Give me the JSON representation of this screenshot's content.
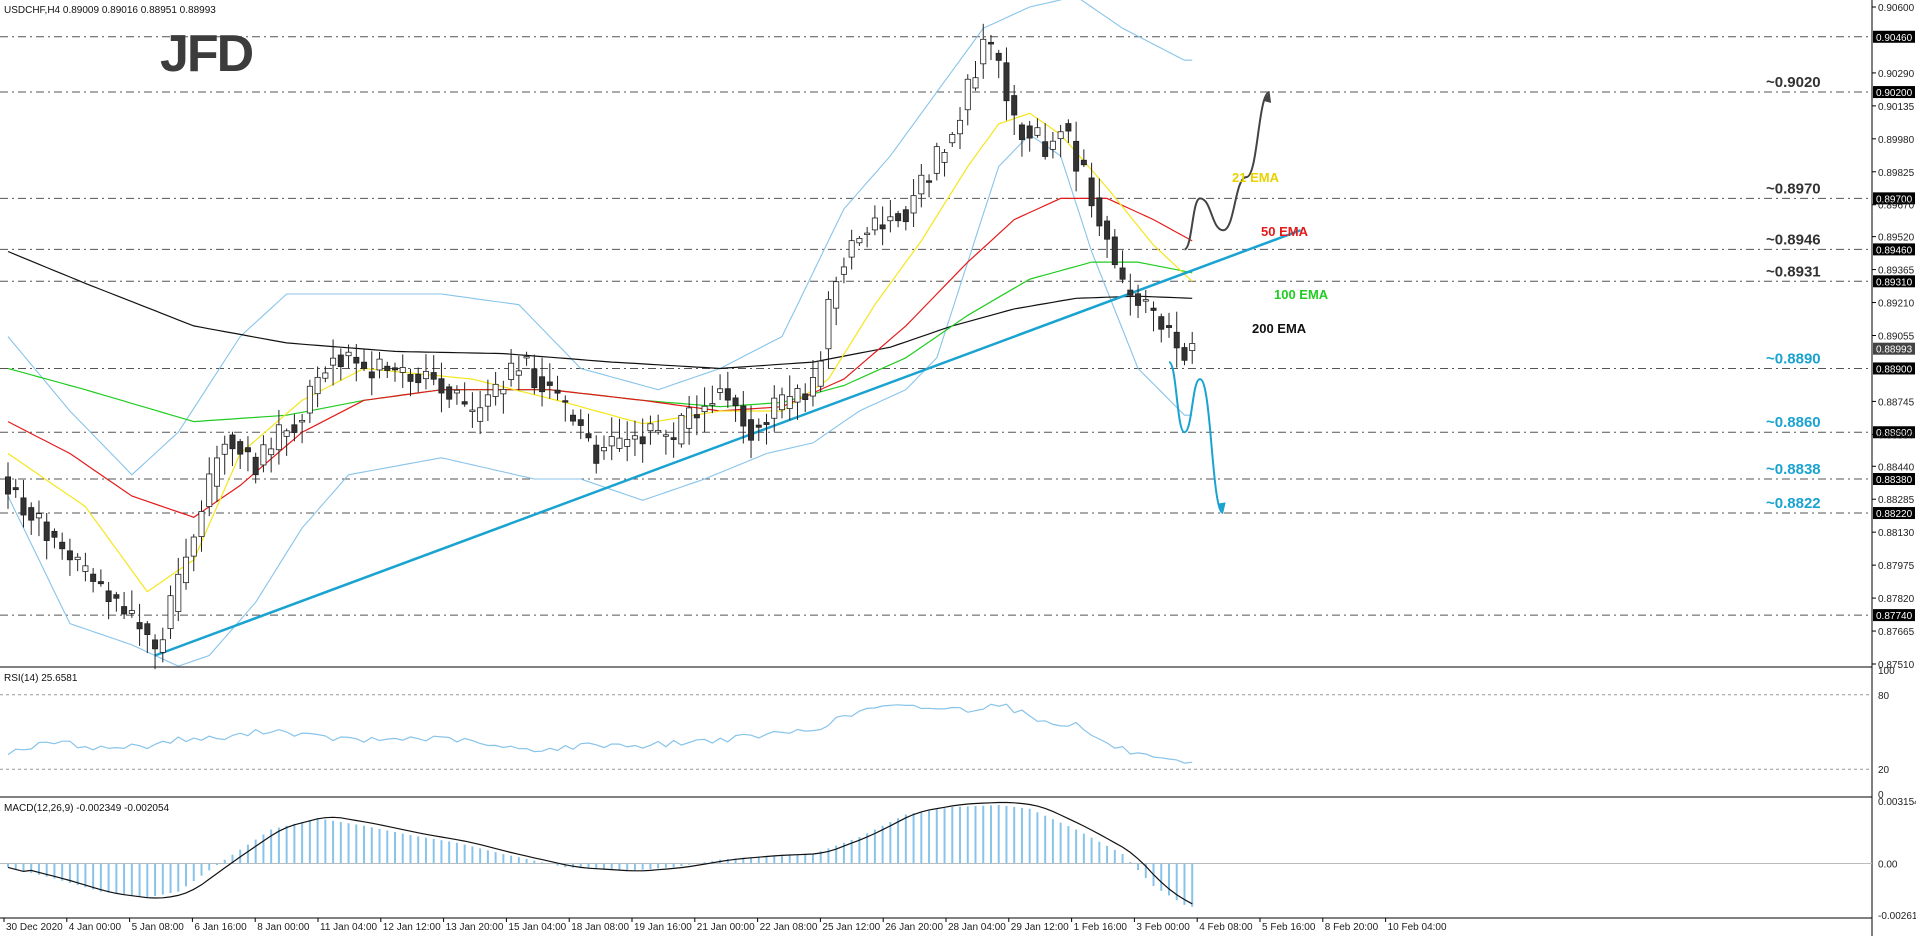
{
  "chart_data": {
    "type": "candlestick",
    "symbol_header": "USDCHF,H4  0.89009 0.89016 0.88951 0.88993",
    "logo": "JFD",
    "colors": {
      "bull": "#ffffff",
      "bear": "#333333",
      "trend": "#1aa3d0",
      "bands": "#88c4ea",
      "ema21": "#f5e61c",
      "ema50": "#e41a1a",
      "ema100": "#22cc22",
      "ema200": "#111111",
      "grid": "#555555",
      "level_text": "#1aa3d0"
    },
    "price_axis": {
      "ylim": [
        0.8751,
        0.906
      ],
      "ticks": [
        "0.90600",
        "0.90290",
        "0.90135",
        "0.89980",
        "0.89825",
        "0.89670",
        "0.89520",
        "0.89365",
        "0.89210",
        "0.89055",
        "0.88745",
        "0.88590",
        "0.88440",
        "0.88285",
        "0.88130",
        "0.87975",
        "0.87820",
        "0.87665",
        "0.87510"
      ],
      "current_price": "0.88993"
    },
    "x_axis": {
      "labels": [
        "30 Dec 2020",
        "4 Jan 00:00",
        "5 Jan 08:00",
        "6 Jan 16:00",
        "8 Jan 00:00",
        "11 Jan 04:00",
        "12 Jan 12:00",
        "13 Jan 20:00",
        "15 Jan 04:00",
        "18 Jan 08:00",
        "19 Jan 16:00",
        "21 Jan 00:00",
        "22 Jan 08:00",
        "25 Jan 12:00",
        "26 Jan 20:00",
        "28 Jan 04:00",
        "29 Jan 12:00",
        "1 Feb 16:00",
        "3 Feb 00:00",
        "4 Feb 08:00",
        "5 Feb 16:00",
        "8 Feb 20:00",
        "10 Feb 04:00"
      ]
    },
    "levels": [
      {
        "price": 0.9046,
        "axis_label": "0.90460",
        "annotation": ""
      },
      {
        "price": 0.902,
        "axis_label": "0.90200",
        "annotation": "~0.9020"
      },
      {
        "price": 0.897,
        "axis_label": "0.89700",
        "annotation": "~0.8970"
      },
      {
        "price": 0.8946,
        "axis_label": "0.89460",
        "annotation": "~0.8946"
      },
      {
        "price": 0.8931,
        "axis_label": "0.89310",
        "annotation": "~0.8931"
      },
      {
        "price": 0.889,
        "axis_label": "0.88900",
        "annotation": "~0.8890"
      },
      {
        "price": 0.886,
        "axis_label": "0.88600",
        "annotation": "~0.8860"
      },
      {
        "price": 0.8838,
        "axis_label": "0.88380",
        "annotation": "~0.8838"
      },
      {
        "price": 0.8822,
        "axis_label": "0.88220",
        "annotation": "~0.8822"
      },
      {
        "price": 0.8774,
        "axis_label": "0.87740",
        "annotation": ""
      }
    ],
    "ema_labels": [
      "21 EMA",
      "50 EMA",
      "100 EMA",
      "200 EMA"
    ],
    "anchors": {
      "closes": [
        [
          0,
          0.8833
        ],
        [
          8,
          0.88
        ],
        [
          17,
          0.8768
        ],
        [
          19,
          0.8755
        ],
        [
          23,
          0.88
        ],
        [
          28,
          0.886
        ],
        [
          32,
          0.8845
        ],
        [
          38,
          0.887
        ],
        [
          42,
          0.8898
        ],
        [
          46,
          0.889
        ],
        [
          55,
          0.8886
        ],
        [
          60,
          0.8866
        ],
        [
          66,
          0.8893
        ],
        [
          70,
          0.888
        ],
        [
          76,
          0.885
        ],
        [
          82,
          0.886
        ],
        [
          86,
          0.8856
        ],
        [
          88,
          0.8868
        ],
        [
          92,
          0.888
        ],
        [
          96,
          0.8862
        ],
        [
          100,
          0.8873
        ],
        [
          104,
          0.888
        ],
        [
          107,
          0.8936
        ],
        [
          110,
          0.8953
        ],
        [
          116,
          0.8965
        ],
        [
          122,
          0.9
        ],
        [
          126,
          0.9043
        ],
        [
          128,
          0.9035
        ],
        [
          130,
          0.9005
        ],
        [
          134,
          0.8995
        ],
        [
          136,
          0.9005
        ],
        [
          140,
          0.8972
        ],
        [
          144,
          0.8928
        ],
        [
          148,
          0.8916
        ],
        [
          151,
          0.89
        ],
        [
          153,
          0.8899
        ]
      ],
      "ema21": [
        [
          0,
          0.885
        ],
        [
          10,
          0.8825
        ],
        [
          18,
          0.8785
        ],
        [
          24,
          0.88
        ],
        [
          30,
          0.885
        ],
        [
          38,
          0.8875
        ],
        [
          46,
          0.889
        ],
        [
          60,
          0.8885
        ],
        [
          72,
          0.8874
        ],
        [
          82,
          0.8864
        ],
        [
          92,
          0.887
        ],
        [
          100,
          0.887
        ],
        [
          106,
          0.8885
        ],
        [
          112,
          0.892
        ],
        [
          118,
          0.895
        ],
        [
          124,
          0.8985
        ],
        [
          128,
          0.9005
        ],
        [
          132,
          0.901
        ],
        [
          136,
          0.9
        ],
        [
          142,
          0.8975
        ],
        [
          148,
          0.8948
        ],
        [
          153,
          0.8931
        ]
      ],
      "ema50": [
        [
          0,
          0.8865
        ],
        [
          8,
          0.885
        ],
        [
          16,
          0.883
        ],
        [
          24,
          0.882
        ],
        [
          30,
          0.8835
        ],
        [
          38,
          0.886
        ],
        [
          46,
          0.8875
        ],
        [
          56,
          0.888
        ],
        [
          70,
          0.888
        ],
        [
          82,
          0.8875
        ],
        [
          92,
          0.887
        ],
        [
          100,
          0.8872
        ],
        [
          108,
          0.8885
        ],
        [
          116,
          0.891
        ],
        [
          124,
          0.894
        ],
        [
          130,
          0.896
        ],
        [
          136,
          0.897
        ],
        [
          142,
          0.897
        ],
        [
          148,
          0.896
        ],
        [
          153,
          0.895
        ]
      ],
      "ema100": [
        [
          0,
          0.889
        ],
        [
          10,
          0.888
        ],
        [
          24,
          0.8865
        ],
        [
          36,
          0.8868
        ],
        [
          46,
          0.8875
        ],
        [
          56,
          0.888
        ],
        [
          70,
          0.888
        ],
        [
          82,
          0.8875
        ],
        [
          92,
          0.8872
        ],
        [
          100,
          0.8874
        ],
        [
          108,
          0.8882
        ],
        [
          116,
          0.8895
        ],
        [
          124,
          0.8915
        ],
        [
          132,
          0.8932
        ],
        [
          140,
          0.894
        ],
        [
          146,
          0.894
        ],
        [
          153,
          0.8935
        ]
      ],
      "ema200": [
        [
          0,
          0.8945
        ],
        [
          10,
          0.893
        ],
        [
          24,
          0.891
        ],
        [
          36,
          0.8902
        ],
        [
          50,
          0.8898
        ],
        [
          64,
          0.8897
        ],
        [
          78,
          0.8893
        ],
        [
          92,
          0.889
        ],
        [
          104,
          0.8893
        ],
        [
          114,
          0.89
        ],
        [
          122,
          0.891
        ],
        [
          130,
          0.8918
        ],
        [
          138,
          0.8923
        ],
        [
          146,
          0.8924
        ],
        [
          153,
          0.8923
        ]
      ],
      "bb_upper": [
        [
          0,
          0.8905
        ],
        [
          8,
          0.887
        ],
        [
          16,
          0.884
        ],
        [
          22,
          0.886
        ],
        [
          30,
          0.8905
        ],
        [
          36,
          0.8925
        ],
        [
          46,
          0.8925
        ],
        [
          56,
          0.8925
        ],
        [
          66,
          0.892
        ],
        [
          74,
          0.889
        ],
        [
          84,
          0.888
        ],
        [
          92,
          0.889
        ],
        [
          100,
          0.8905
        ],
        [
          108,
          0.8965
        ],
        [
          114,
          0.899
        ],
        [
          120,
          0.902
        ],
        [
          126,
          0.905
        ],
        [
          132,
          0.906
        ],
        [
          138,
          0.9065
        ],
        [
          144,
          0.905
        ],
        [
          152,
          0.9035
        ]
      ],
      "bb_lower": [
        [
          0,
          0.883
        ],
        [
          8,
          0.877
        ],
        [
          16,
          0.876
        ],
        [
          22,
          0.875
        ],
        [
          26,
          0.8755
        ],
        [
          32,
          0.878
        ],
        [
          38,
          0.8815
        ],
        [
          44,
          0.884
        ],
        [
          56,
          0.8848
        ],
        [
          68,
          0.8838
        ],
        [
          74,
          0.8838
        ],
        [
          82,
          0.8828
        ],
        [
          90,
          0.8838
        ],
        [
          98,
          0.885
        ],
        [
          104,
          0.8855
        ],
        [
          110,
          0.887
        ],
        [
          116,
          0.888
        ],
        [
          120,
          0.8895
        ],
        [
          124,
          0.894
        ],
        [
          128,
          0.8985
        ],
        [
          132,
          0.9
        ],
        [
          136,
          0.899
        ],
        [
          140,
          0.8945
        ],
        [
          146,
          0.889
        ],
        [
          152,
          0.8868
        ]
      ]
    },
    "trendline": {
      "start": [
        19,
        0.8755
      ],
      "end": [
        167,
        0.8955
      ]
    },
    "forecast_up": [
      [
        152,
        0.8946
      ],
      [
        154,
        0.897
      ],
      [
        157,
        0.8955
      ],
      [
        160,
        0.898
      ],
      [
        163,
        0.902
      ]
    ],
    "forecast_down": [
      [
        150,
        0.8893
      ],
      [
        152,
        0.886
      ],
      [
        154,
        0.8885
      ],
      [
        157,
        0.8822
      ]
    ],
    "rsi": {
      "label": "RSI(14) 25.6581",
      "ticks": [
        "100",
        "80",
        "20",
        "0"
      ],
      "anchors": [
        [
          0,
          34
        ],
        [
          6,
          42
        ],
        [
          12,
          37
        ],
        [
          18,
          39
        ],
        [
          22,
          44
        ],
        [
          28,
          45
        ],
        [
          34,
          52
        ],
        [
          40,
          46
        ],
        [
          46,
          43
        ],
        [
          52,
          45
        ],
        [
          58,
          44
        ],
        [
          64,
          37
        ],
        [
          70,
          36
        ],
        [
          76,
          40
        ],
        [
          82,
          39
        ],
        [
          88,
          42
        ],
        [
          94,
          45
        ],
        [
          100,
          49
        ],
        [
          104,
          52
        ],
        [
          108,
          62
        ],
        [
          112,
          70
        ],
        [
          118,
          70
        ],
        [
          124,
          68
        ],
        [
          128,
          73
        ],
        [
          130,
          68
        ],
        [
          134,
          58
        ],
        [
          138,
          56
        ],
        [
          142,
          40
        ],
        [
          148,
          28
        ],
        [
          152,
          24
        ],
        [
          153,
          25.66
        ]
      ]
    },
    "macd": {
      "label": "MACD(12,26,9) -0.002349 -0.002054",
      "ticks": [
        "0.003154",
        "0.00",
        "-0.002611"
      ],
      "anchors": [
        [
          0,
          -0.0002
        ],
        [
          6,
          -0.0008
        ],
        [
          12,
          -0.0015
        ],
        [
          18,
          -0.0018
        ],
        [
          22,
          -0.0015
        ],
        [
          28,
          0.0002
        ],
        [
          34,
          0.0018
        ],
        [
          40,
          0.0024
        ],
        [
          46,
          0.002
        ],
        [
          52,
          0.0015
        ],
        [
          58,
          0.0011
        ],
        [
          64,
          0.0005
        ],
        [
          72,
          -0.0002
        ],
        [
          80,
          -0.0004
        ],
        [
          86,
          -0.0002
        ],
        [
          92,
          0.0002
        ],
        [
          98,
          0.0004
        ],
        [
          104,
          0.0005
        ],
        [
          110,
          0.0014
        ],
        [
          116,
          0.0026
        ],
        [
          122,
          0.003
        ],
        [
          128,
          0.0031
        ],
        [
          132,
          0.0029
        ],
        [
          138,
          0.0018
        ],
        [
          144,
          0.0005
        ],
        [
          148,
          -0.0012
        ],
        [
          152,
          -0.0022
        ],
        [
          153,
          -0.0023
        ]
      ]
    }
  }
}
